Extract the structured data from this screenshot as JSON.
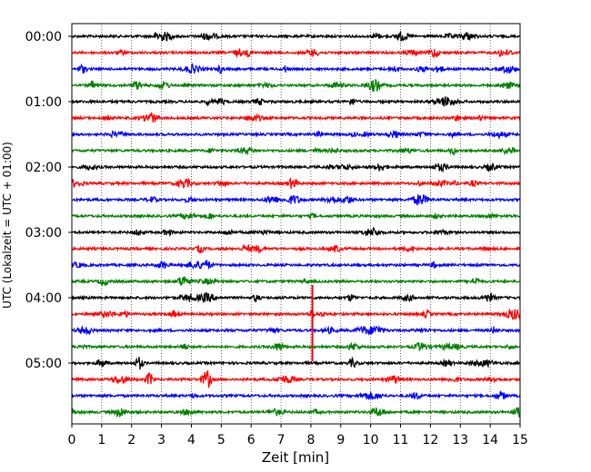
{
  "chart_data": {
    "type": "line",
    "title": "",
    "xlabel": "Zeit  [min]",
    "ylabel": "UTC (Lokalzeit = UTC + 01:00)",
    "xlim": [
      0,
      15
    ],
    "x_ticks": [
      "0",
      "1",
      "2",
      "3",
      "4",
      "5",
      "6",
      "7",
      "8",
      "9",
      "10",
      "11",
      "12",
      "13",
      "14",
      "15"
    ],
    "y_ticks": [
      "00:00",
      "01:00",
      "02:00",
      "03:00",
      "04:00",
      "05:00"
    ],
    "grid": "vertical dotted",
    "colors": [
      "#000000",
      "#ff0000",
      "#0000ff",
      "#008000"
    ],
    "rows": [
      {
        "start": "00:00",
        "color": "#000000"
      },
      {
        "start": "00:15",
        "color": "#ff0000"
      },
      {
        "start": "00:30",
        "color": "#0000ff"
      },
      {
        "start": "00:45",
        "color": "#008000"
      },
      {
        "start": "01:00",
        "color": "#000000"
      },
      {
        "start": "01:15",
        "color": "#ff0000"
      },
      {
        "start": "01:30",
        "color": "#0000ff"
      },
      {
        "start": "01:45",
        "color": "#008000"
      },
      {
        "start": "02:00",
        "color": "#000000"
      },
      {
        "start": "02:15",
        "color": "#ff0000"
      },
      {
        "start": "02:30",
        "color": "#0000ff"
      },
      {
        "start": "02:45",
        "color": "#008000"
      },
      {
        "start": "03:00",
        "color": "#000000"
      },
      {
        "start": "03:15",
        "color": "#ff0000"
      },
      {
        "start": "03:30",
        "color": "#0000ff"
      },
      {
        "start": "03:45",
        "color": "#008000"
      },
      {
        "start": "04:00",
        "color": "#000000"
      },
      {
        "start": "04:15",
        "color": "#ff0000"
      },
      {
        "start": "04:30",
        "color": "#0000ff"
      },
      {
        "start": "04:45",
        "color": "#008000"
      },
      {
        "start": "05:00",
        "color": "#000000"
      },
      {
        "start": "05:15",
        "color": "#ff0000"
      },
      {
        "start": "05:30",
        "color": "#0000ff"
      },
      {
        "start": "05:45",
        "color": "#008000"
      }
    ],
    "events": [
      {
        "row": 17,
        "minute": 8.05,
        "note": "large spike"
      },
      {
        "row": 21,
        "minute": 2.6
      },
      {
        "row": 21,
        "minute": 4.55
      },
      {
        "row": 20,
        "minute": 2.25
      }
    ]
  }
}
